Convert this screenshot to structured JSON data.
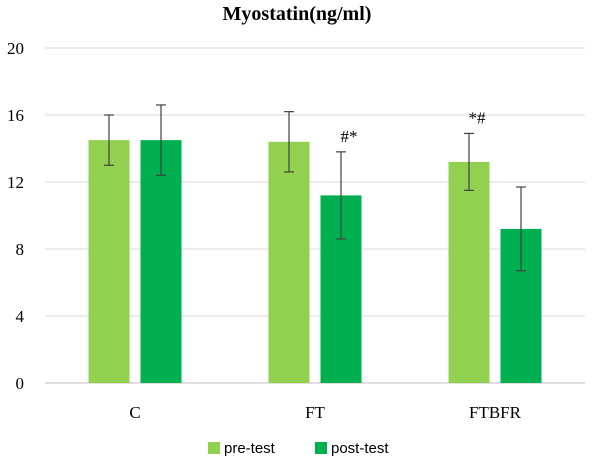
{
  "chart_data": {
    "type": "bar",
    "title": "Myostatin(ng/ml)",
    "categories": [
      "C",
      "FT",
      "FTBFR"
    ],
    "ylim": [
      0,
      20
    ],
    "yticks": [
      0,
      4,
      8,
      12,
      16,
      20
    ],
    "grid": true,
    "legend_position": "bottom",
    "series": [
      {
        "name": "pre-test",
        "color": "#92d050",
        "values": [
          14.5,
          14.4,
          13.2
        ],
        "errors": [
          1.5,
          1.8,
          1.7
        ]
      },
      {
        "name": "post-test",
        "color": "#00b050",
        "values": [
          14.5,
          11.2,
          9.2
        ],
        "errors": [
          2.1,
          2.6,
          2.5
        ]
      }
    ],
    "annotations": [
      {
        "category": "FT",
        "series": "post-test",
        "text": "#*"
      },
      {
        "category": "FTBFR",
        "series": "pre-test",
        "text": "*#"
      }
    ]
  }
}
